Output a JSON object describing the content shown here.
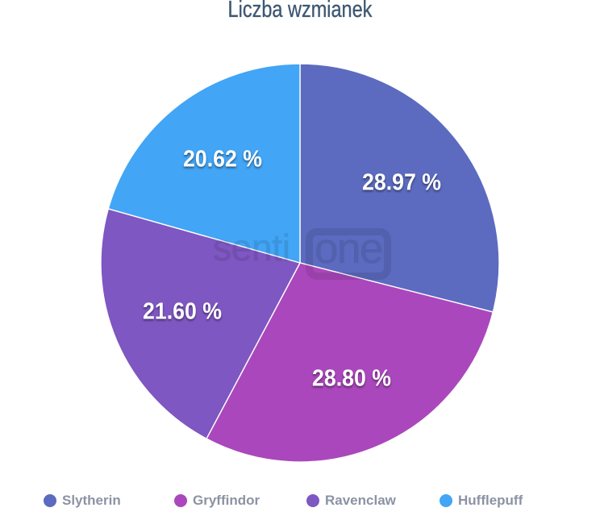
{
  "chart_data": {
    "type": "pie",
    "title": "Liczba wzmianek",
    "categories": [
      "Slytherin",
      "Gryffindor",
      "Ravenclaw",
      "Hufflepuff"
    ],
    "values": [
      28.97,
      28.8,
      21.6,
      20.62
    ],
    "slice_labels": [
      "28.97 %",
      "28.80 %",
      "21.60 %",
      "20.62 %"
    ],
    "colors": [
      "#5C6BC0",
      "#AB47BC",
      "#7E57C2",
      "#42A5F5"
    ],
    "start_angle": "top",
    "direction": "clockwise",
    "legend_position": "bottom",
    "title_color": "#3e5872",
    "legend_text_color": "#8b93a3",
    "slice_border_color": "#ffffff",
    "label_text_color": "#ffffff"
  },
  "watermark": {
    "text_left": "senti",
    "text_boxed": "one"
  }
}
